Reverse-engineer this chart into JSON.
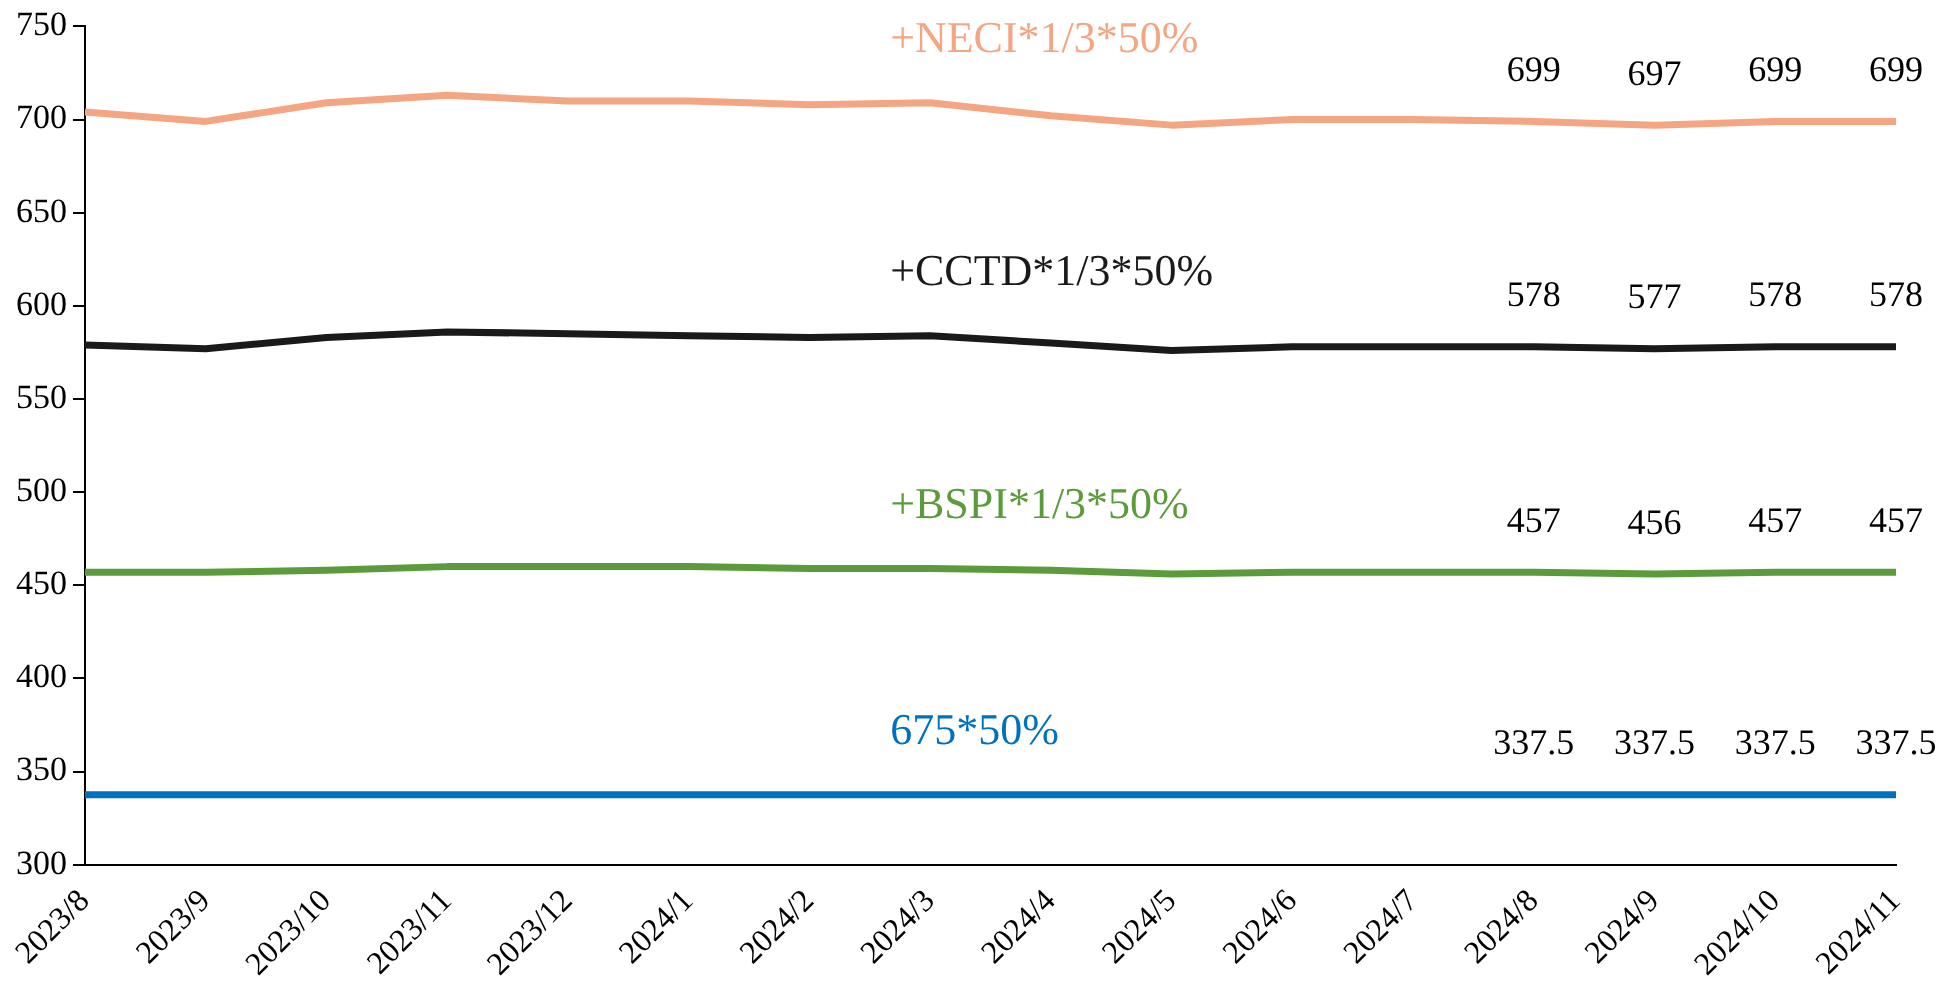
{
  "chart_data": {
    "type": "line",
    "categories": [
      "2023/8",
      "2023/9",
      "2023/10",
      "2023/11",
      "2023/12",
      "2024/1",
      "2024/2",
      "2024/3",
      "2024/4",
      "2024/5",
      "2024/6",
      "2024/7",
      "2024/8",
      "2024/9",
      "2024/10",
      "2024/11"
    ],
    "series": [
      {
        "name": "+NECI*1/3*50%",
        "color": "#f4a582",
        "values": [
          704,
          699,
          709,
          713,
          710,
          710,
          708,
          709,
          702,
          697,
          700,
          700,
          699,
          697,
          699,
          699
        ],
        "value_labels": [
          null,
          null,
          null,
          null,
          null,
          null,
          null,
          null,
          null,
          null,
          null,
          null,
          "699",
          "697",
          "699",
          "699"
        ]
      },
      {
        "name": "+CCTD*1/3*50%",
        "color": "#1a1a1a",
        "values": [
          579,
          577,
          583,
          586,
          585,
          584,
          583,
          584,
          580,
          576,
          578,
          578,
          578,
          577,
          578,
          578
        ],
        "value_labels": [
          null,
          null,
          null,
          null,
          null,
          null,
          null,
          null,
          null,
          null,
          null,
          null,
          "578",
          "577",
          "578",
          "578"
        ]
      },
      {
        "name": "+BSPI*1/3*50%",
        "color": "#5b9b3c",
        "values": [
          457,
          457,
          458,
          460,
          460,
          460,
          459,
          459,
          458,
          456,
          457,
          457,
          457,
          456,
          457,
          457
        ],
        "value_labels": [
          null,
          null,
          null,
          null,
          null,
          null,
          null,
          null,
          null,
          null,
          null,
          null,
          "457",
          "456",
          "457",
          "457"
        ]
      },
      {
        "name": "675*50%",
        "color": "#0070c0",
        "values": [
          337.5,
          337.5,
          337.5,
          337.5,
          337.5,
          337.5,
          337.5,
          337.5,
          337.5,
          337.5,
          337.5,
          337.5,
          337.5,
          337.5,
          337.5,
          337.5
        ],
        "value_labels": [
          null,
          null,
          null,
          null,
          null,
          null,
          null,
          null,
          null,
          null,
          null,
          null,
          "337.5",
          "337.5",
          "337.5",
          "337.5"
        ]
      }
    ],
    "ylim": [
      300,
      750
    ],
    "yticks": [
      300,
      350,
      400,
      450,
      500,
      550,
      600,
      650,
      700,
      750
    ],
    "grid": false,
    "legend": false,
    "marker": "none",
    "line_style": "solid"
  }
}
